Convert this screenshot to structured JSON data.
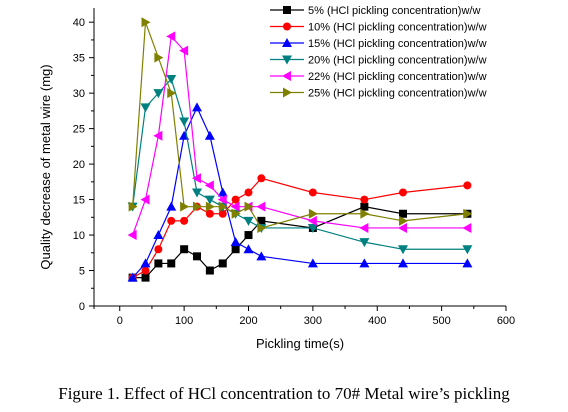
{
  "caption": "Figure 1.   Effect of HCl concentration to 70# Metal wire’s pickling",
  "chart_data": {
    "type": "line",
    "xlabel": "Pickling time(s)",
    "ylabel": "Quality decrease of metal wire (mg)",
    "xlim": [
      -40,
      600
    ],
    "ylim": [
      0,
      42
    ],
    "xticks": [
      0,
      100,
      200,
      300,
      400,
      500,
      600
    ],
    "yticks": [
      0,
      5,
      10,
      15,
      20,
      25,
      30,
      35,
      40
    ],
    "legend_position": "top-right",
    "grid": false,
    "series": [
      {
        "name": "5% (HCl pickling concentration)w/w",
        "color": "#000000",
        "marker": "square",
        "x": [
          20,
          40,
          60,
          80,
          100,
          120,
          140,
          160,
          180,
          200,
          220,
          300,
          380,
          440,
          540
        ],
        "y": [
          4,
          4,
          6,
          6,
          8,
          7,
          5,
          6,
          8,
          10,
          12,
          11,
          14,
          13,
          13
        ]
      },
      {
        "name": "10% (HCl pickling concentration)w/w",
        "color": "#ff0000",
        "marker": "circle",
        "x": [
          20,
          40,
          60,
          80,
          100,
          120,
          140,
          160,
          180,
          200,
          220,
          300,
          380,
          440,
          540
        ],
        "y": [
          4,
          5,
          8,
          12,
          12,
          14,
          13,
          13,
          15,
          16,
          18,
          16,
          15,
          16,
          17
        ]
      },
      {
        "name": "15% (HCl pickling concentration)w/w",
        "color": "#0000ff",
        "marker": "triangle-up",
        "x": [
          20,
          40,
          60,
          80,
          100,
          120,
          140,
          160,
          180,
          200,
          220,
          300,
          380,
          440,
          540
        ],
        "y": [
          4,
          6,
          10,
          14,
          24,
          28,
          24,
          16,
          9,
          8,
          7,
          6,
          6,
          6,
          6
        ]
      },
      {
        "name": "20% (HCl pickling concentration)w/w",
        "color": "#008080",
        "marker": "triangle-down",
        "x": [
          20,
          40,
          60,
          80,
          100,
          120,
          140,
          160,
          180,
          200,
          220,
          300,
          380,
          440,
          540
        ],
        "y": [
          14,
          28,
          30,
          32,
          26,
          16,
          15,
          14,
          13,
          12,
          11,
          11,
          9,
          8,
          8
        ]
      },
      {
        "name": "22% (HCl pickling concentration)w/w",
        "color": "#ff00ff",
        "marker": "triangle-left",
        "x": [
          20,
          40,
          60,
          80,
          100,
          120,
          140,
          160,
          180,
          200,
          220,
          300,
          380,
          440,
          540
        ],
        "y": [
          10,
          15,
          24,
          38,
          36,
          18,
          17,
          15,
          14,
          14,
          14,
          12,
          11,
          11,
          11
        ]
      },
      {
        "name": "25% (HCl pickling concentration)w/w",
        "color": "#808000",
        "marker": "triangle-right",
        "x": [
          20,
          40,
          60,
          80,
          100,
          120,
          140,
          160,
          180,
          200,
          220,
          300,
          380,
          440,
          540
        ],
        "y": [
          14,
          40,
          35,
          30,
          14,
          14,
          14,
          14,
          13,
          14,
          11,
          13,
          13,
          12,
          13
        ]
      }
    ]
  }
}
